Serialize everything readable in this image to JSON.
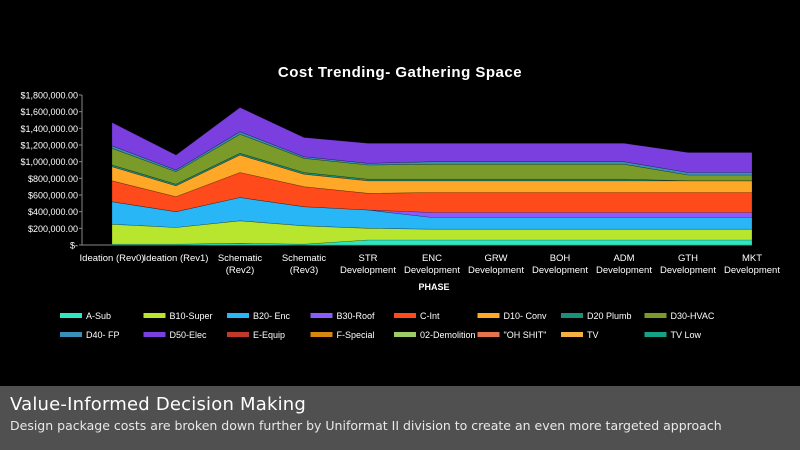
{
  "chart_data": {
    "type": "area",
    "stacked": true,
    "title": "Cost Trending- Gathering Space",
    "xlabel": "PHASE",
    "ylabel": "",
    "ylim": [
      0,
      1800000
    ],
    "y_ticks": [
      "$-",
      "$200,000.00",
      "$400,000.00",
      "$600,000.00",
      "$800,000.00",
      "$1,000,000.00",
      "$1,200,000.00",
      "$1,400,000.00",
      "$1,600,000.00",
      "$1,800,000.00"
    ],
    "y_tick_values": [
      0,
      200000,
      400000,
      600000,
      800000,
      1000000,
      1200000,
      1400000,
      1600000,
      1800000
    ],
    "categories": [
      [
        "Ideation (Rev0)"
      ],
      [
        "Ideation (Rev1)"
      ],
      [
        "Schematic",
        "(Rev2)"
      ],
      [
        "Schematic",
        "(Rev3)"
      ],
      [
        "STR",
        "Development"
      ],
      [
        "ENC",
        "Development"
      ],
      [
        "GRW",
        "Development"
      ],
      [
        "BOH",
        "Development"
      ],
      [
        "ADM",
        "Development"
      ],
      [
        "GTH",
        "Development"
      ],
      [
        "MKT",
        "Development"
      ]
    ],
    "legend_placement": "bottom",
    "grid": false,
    "series": [
      {
        "name": "A-Sub",
        "color": "#2ee6c0",
        "values": [
          10000,
          10000,
          20000,
          10000,
          60000,
          60000,
          60000,
          60000,
          60000,
          60000,
          60000
        ]
      },
      {
        "name": "B10-Super",
        "color": "#b8e62e",
        "values": [
          240000,
          200000,
          270000,
          220000,
          140000,
          130000,
          130000,
          130000,
          130000,
          130000,
          130000
        ]
      },
      {
        "name": "B20- Enc",
        "color": "#29b6f6",
        "values": [
          270000,
          190000,
          280000,
          230000,
          220000,
          140000,
          140000,
          140000,
          140000,
          140000,
          140000
        ]
      },
      {
        "name": "B30-Roof",
        "color": "#8a5cff",
        "values": [
          0,
          0,
          0,
          0,
          0,
          60000,
          60000,
          60000,
          60000,
          60000,
          60000
        ]
      },
      {
        "name": "C-Int",
        "color": "#ff4a1c",
        "values": [
          250000,
          180000,
          300000,
          240000,
          200000,
          240000,
          240000,
          240000,
          240000,
          240000,
          240000
        ]
      },
      {
        "name": "D10- Conv",
        "color": "#ffa726",
        "values": [
          170000,
          130000,
          210000,
          150000,
          150000,
          140000,
          140000,
          140000,
          140000,
          140000,
          140000
        ]
      },
      {
        "name": "D20 Plumb",
        "color": "#1a8f7a",
        "values": [
          20000,
          20000,
          20000,
          20000,
          20000,
          20000,
          20000,
          20000,
          20000,
          0,
          0
        ]
      },
      {
        "name": "D30-HVAC",
        "color": "#7a9a2a",
        "values": [
          200000,
          150000,
          230000,
          170000,
          170000,
          180000,
          180000,
          180000,
          180000,
          70000,
          70000
        ]
      },
      {
        "name": "D40- FP",
        "color": "#3a8fb7",
        "values": [
          30000,
          20000,
          30000,
          20000,
          20000,
          30000,
          30000,
          30000,
          30000,
          30000,
          30000
        ]
      },
      {
        "name": "D50-Elec",
        "color": "#7b3fe0",
        "values": [
          280000,
          180000,
          290000,
          230000,
          240000,
          220000,
          220000,
          220000,
          220000,
          240000,
          240000
        ]
      },
      {
        "name": "E-Equip",
        "color": "#c0392b",
        "values": [
          0,
          0,
          0,
          0,
          0,
          0,
          0,
          0,
          0,
          0,
          0
        ]
      },
      {
        "name": "F-Special",
        "color": "#d68910",
        "values": [
          0,
          0,
          0,
          0,
          0,
          0,
          0,
          0,
          0,
          0,
          0
        ]
      },
      {
        "name": "02-Demolition",
        "color": "#9ccc65",
        "values": [
          0,
          0,
          0,
          0,
          0,
          0,
          0,
          0,
          0,
          0,
          0
        ]
      },
      {
        "name": "\"OH SHIT\"",
        "color": "#e57350",
        "values": [
          0,
          0,
          0,
          0,
          0,
          0,
          0,
          0,
          0,
          0,
          0
        ]
      },
      {
        "name": "TV",
        "color": "#f5b041",
        "values": [
          0,
          0,
          0,
          0,
          0,
          0,
          0,
          0,
          0,
          0,
          0
        ]
      },
      {
        "name": "TV Low",
        "color": "#16a085",
        "values": [
          0,
          0,
          0,
          0,
          0,
          0,
          0,
          0,
          0,
          0,
          0
        ]
      }
    ]
  },
  "caption": {
    "title": "Value-Informed  Decision  Making",
    "subtitle": "Design package costs are broken down further by Uniformat II division to create an even more targeted approach"
  }
}
